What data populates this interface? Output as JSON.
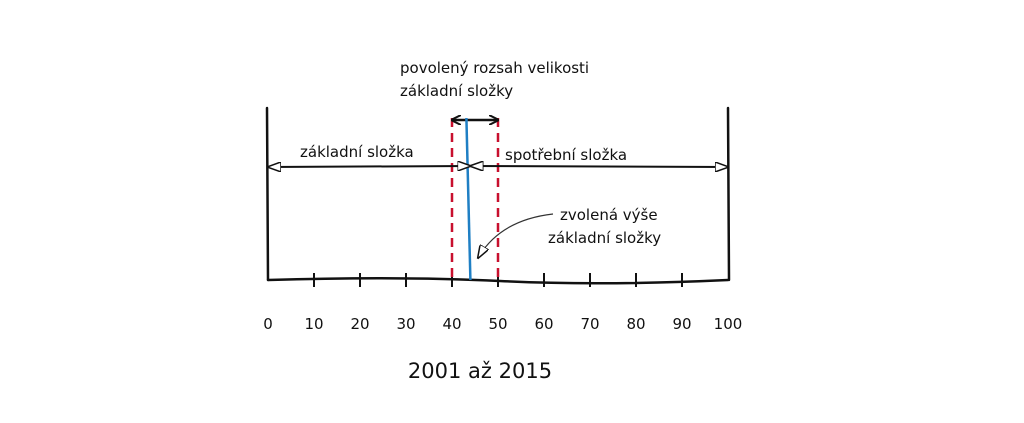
{
  "annotations": {
    "allowed_range": [
      "povolený rozsah velikosti",
      "základní složky"
    ],
    "base": "základní složka",
    "consumption": "spotřební složka",
    "chosen": [
      "zvolená výše",
      "základní složky"
    ]
  },
  "axis": {
    "lim": [
      0,
      100
    ],
    "ticks": [
      0,
      10,
      20,
      30,
      40,
      50,
      60,
      70,
      80,
      90,
      100
    ]
  },
  "range": [
    40,
    50
  ],
  "chosen_value": 44,
  "caption": "2001 až 2015"
}
